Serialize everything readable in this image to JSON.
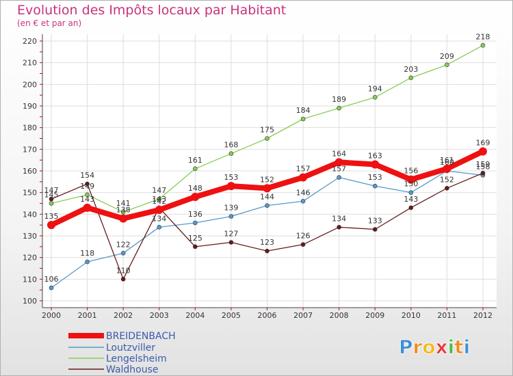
{
  "chart_data": {
    "type": "line",
    "title": "Evolution des Impôts locaux par Habitant",
    "subtitle": "(en € et par an)",
    "x": [
      "2000",
      "2001",
      "2002",
      "2003",
      "2004",
      "2005",
      "2006",
      "2007",
      "2008",
      "2009",
      "2010",
      "2011",
      "2012"
    ],
    "ylim": [
      100,
      220
    ],
    "yticks": [
      100,
      110,
      120,
      130,
      140,
      150,
      160,
      170,
      180,
      190,
      200,
      210,
      220
    ],
    "grid": true,
    "legend_position": "bottom-left",
    "series": [
      {
        "name": "BREIDENBACH",
        "color": "#ee1111",
        "values": [
          135,
          143,
          138,
          142,
          148,
          153,
          152,
          157,
          164,
          163,
          156,
          161,
          169
        ]
      },
      {
        "name": "Loutzviller",
        "color": "#5599cc",
        "values": [
          106,
          118,
          122,
          134,
          136,
          139,
          144,
          146,
          157,
          153,
          150,
          160,
          158
        ]
      },
      {
        "name": "Lengelsheim",
        "color": "#88cc55",
        "values": [
          145,
          149,
          141,
          147,
          161,
          168,
          175,
          184,
          189,
          194,
          203,
          209,
          218
        ]
      },
      {
        "name": "Waldhouse",
        "color": "#661a1a",
        "values": [
          147,
          154,
          110,
          143,
          125,
          127,
          123,
          126,
          134,
          133,
          143,
          152,
          159
        ]
      }
    ]
  },
  "logo": {
    "letters": [
      "P",
      "r",
      "o",
      "x",
      "i",
      "t",
      "i"
    ],
    "colors": [
      "#3b8fd6",
      "#f08a1c",
      "#f5b81c",
      "#e83a3a",
      "#4cb84c",
      "#f08a1c",
      "#3b8fd6"
    ]
  }
}
